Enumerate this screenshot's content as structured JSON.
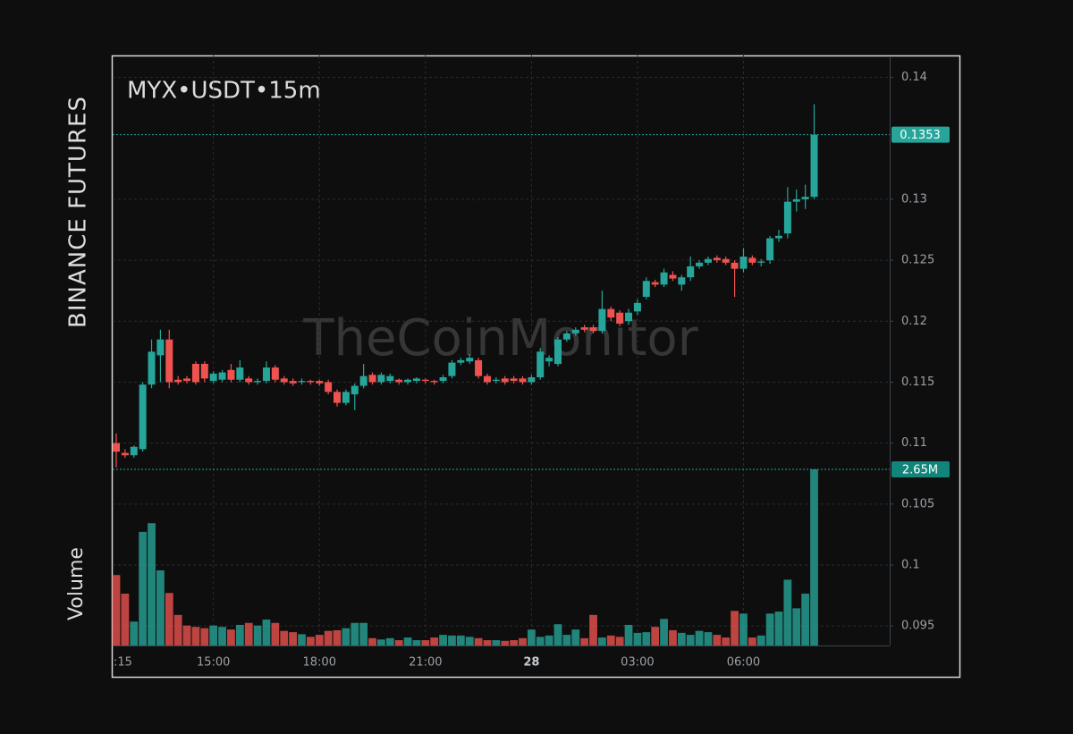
{
  "chart_data": {
    "type": "candlestick",
    "title": "MYX•USDT•15m",
    "exchange": "BINANCE FUTURES",
    "watermark": "TheCoinMonitor",
    "up_color": "#26a69a",
    "down_color": "#ef5350",
    "ylim": [
      0.0934,
      0.1418
    ],
    "yticks": [
      0.14,
      0.13,
      0.125,
      0.12,
      0.115,
      0.11,
      0.105,
      0.1,
      0.095
    ],
    "grid": true,
    "xticks": [
      {
        "value": 0,
        "label": ":15"
      },
      {
        "value": 11,
        "label": "15:00"
      },
      {
        "value": 23,
        "label": "18:00"
      },
      {
        "value": 35,
        "label": "21:00"
      },
      {
        "value": 47,
        "label": "28"
      },
      {
        "value": 59,
        "label": "03:00"
      },
      {
        "value": 71,
        "label": "06:00"
      }
    ],
    "open": [
      0.11,
      0.1092,
      0.109,
      0.1095,
      0.1148,
      0.1172,
      0.1185,
      0.1152,
      0.1153,
      0.1165,
      0.1165,
      0.1151,
      0.1152,
      0.116,
      0.1152,
      0.1153,
      0.115,
      0.1151,
      0.1162,
      0.1153,
      0.1151,
      0.115,
      0.1151,
      0.1151,
      0.115,
      0.1142,
      0.1133,
      0.114,
      0.1147,
      0.1156,
      0.115,
      0.1151,
      0.1152,
      0.115,
      0.1151,
      0.1152,
      0.1151,
      0.1151,
      0.1155,
      0.1166,
      0.1167,
      0.1168,
      0.1155,
      0.1151,
      0.1153,
      0.1153,
      0.1153,
      0.115,
      0.1154,
      0.1167,
      0.1165,
      0.1185,
      0.119,
      0.1195,
      0.1195,
      0.1192,
      0.121,
      0.1207,
      0.12,
      0.1208,
      0.122,
      0.1232,
      0.123,
      0.1238,
      0.123,
      0.1236,
      0.1245,
      0.1248,
      0.1252,
      0.1251,
      0.1248,
      0.1243,
      0.1252,
      0.1248,
      0.125,
      0.1268,
      0.1272,
      0.1298,
      0.13,
      0.1302
    ],
    "high": [
      0.1108,
      0.1095,
      0.1098,
      0.115,
      0.1185,
      0.1193,
      0.1193,
      0.1155,
      0.1155,
      0.1167,
      0.1167,
      0.1159,
      0.116,
      0.1165,
      0.1168,
      0.1155,
      0.1153,
      0.1167,
      0.1164,
      0.1155,
      0.1153,
      0.1153,
      0.1152,
      0.1152,
      0.1152,
      0.1144,
      0.1144,
      0.1149,
      0.1165,
      0.1158,
      0.1158,
      0.1157,
      0.1153,
      0.1153,
      0.1154,
      0.1153,
      0.1152,
      0.1156,
      0.1168,
      0.117,
      0.1173,
      0.117,
      0.1157,
      0.1154,
      0.1155,
      0.1155,
      0.1155,
      0.1156,
      0.1178,
      0.1172,
      0.1187,
      0.1192,
      0.1195,
      0.1197,
      0.1197,
      0.1225,
      0.1212,
      0.1209,
      0.121,
      0.1218,
      0.1236,
      0.1234,
      0.1243,
      0.1241,
      0.1238,
      0.1253,
      0.125,
      0.1253,
      0.1254,
      0.1253,
      0.125,
      0.126,
      0.1254,
      0.1251,
      0.127,
      0.1275,
      0.131,
      0.1308,
      0.1312,
      0.1378
    ],
    "low": [
      0.108,
      0.1088,
      0.1088,
      0.1093,
      0.1145,
      0.115,
      0.1145,
      0.1148,
      0.1149,
      0.1148,
      0.115,
      0.1149,
      0.115,
      0.115,
      0.115,
      0.1148,
      0.1148,
      0.1149,
      0.115,
      0.1148,
      0.1147,
      0.1148,
      0.1148,
      0.1147,
      0.114,
      0.113,
      0.1131,
      0.1127,
      0.1145,
      0.1148,
      0.1148,
      0.1149,
      0.1148,
      0.1148,
      0.1149,
      0.1149,
      0.1148,
      0.1149,
      0.1153,
      0.1164,
      0.1165,
      0.1153,
      0.1148,
      0.1149,
      0.1148,
      0.1149,
      0.1148,
      0.1148,
      0.1152,
      0.1163,
      0.1163,
      0.1183,
      0.1188,
      0.1191,
      0.119,
      0.119,
      0.12,
      0.1196,
      0.1197,
      0.1205,
      0.1218,
      0.1228,
      0.1228,
      0.1233,
      0.1225,
      0.1233,
      0.1243,
      0.1246,
      0.1248,
      0.1246,
      0.122,
      0.124,
      0.1246,
      0.1245,
      0.1247,
      0.1265,
      0.1268,
      0.129,
      0.1292,
      0.13
    ],
    "close": [
      0.1093,
      0.109,
      0.1097,
      0.1148,
      0.1175,
      0.1185,
      0.115,
      0.115,
      0.1151,
      0.115,
      0.1153,
      0.1157,
      0.1158,
      0.1152,
      0.1162,
      0.115,
      0.1151,
      0.1162,
      0.1152,
      0.115,
      0.1149,
      0.1151,
      0.115,
      0.1149,
      0.1142,
      0.1133,
      0.1142,
      0.1147,
      0.1155,
      0.115,
      0.1156,
      0.1155,
      0.115,
      0.1152,
      0.1153,
      0.1151,
      0.115,
      0.1154,
      0.1166,
      0.1168,
      0.117,
      0.1155,
      0.115,
      0.1152,
      0.115,
      0.1151,
      0.115,
      0.1154,
      0.1175,
      0.117,
      0.1185,
      0.119,
      0.1193,
      0.1193,
      0.1192,
      0.121,
      0.1203,
      0.1198,
      0.1207,
      0.1215,
      0.1233,
      0.123,
      0.124,
      0.1235,
      0.1236,
      0.1245,
      0.1248,
      0.1251,
      0.125,
      0.1248,
      0.1243,
      0.1253,
      0.1248,
      0.1249,
      0.1268,
      0.127,
      0.1298,
      0.13,
      0.1302,
      0.1353
    ],
    "volume": {
      "name": "Volume",
      "last_value_label": "2.65M",
      "values": [
        1.06,
        0.78,
        0.36,
        1.71,
        1.84,
        1.13,
        0.79,
        0.46,
        0.3,
        0.28,
        0.26,
        0.3,
        0.28,
        0.24,
        0.31,
        0.34,
        0.3,
        0.39,
        0.34,
        0.22,
        0.2,
        0.17,
        0.13,
        0.16,
        0.22,
        0.23,
        0.26,
        0.34,
        0.34,
        0.11,
        0.09,
        0.11,
        0.08,
        0.12,
        0.08,
        0.08,
        0.12,
        0.16,
        0.15,
        0.15,
        0.13,
        0.11,
        0.08,
        0.08,
        0.07,
        0.08,
        0.11,
        0.24,
        0.13,
        0.15,
        0.32,
        0.16,
        0.24,
        0.11,
        0.46,
        0.12,
        0.15,
        0.13,
        0.31,
        0.19,
        0.2,
        0.28,
        0.4,
        0.23,
        0.19,
        0.16,
        0.22,
        0.2,
        0.16,
        0.12,
        0.52,
        0.48,
        0.12,
        0.15,
        0.48,
        0.51,
        0.99,
        0.56,
        0.78,
        2.65
      ]
    }
  }
}
